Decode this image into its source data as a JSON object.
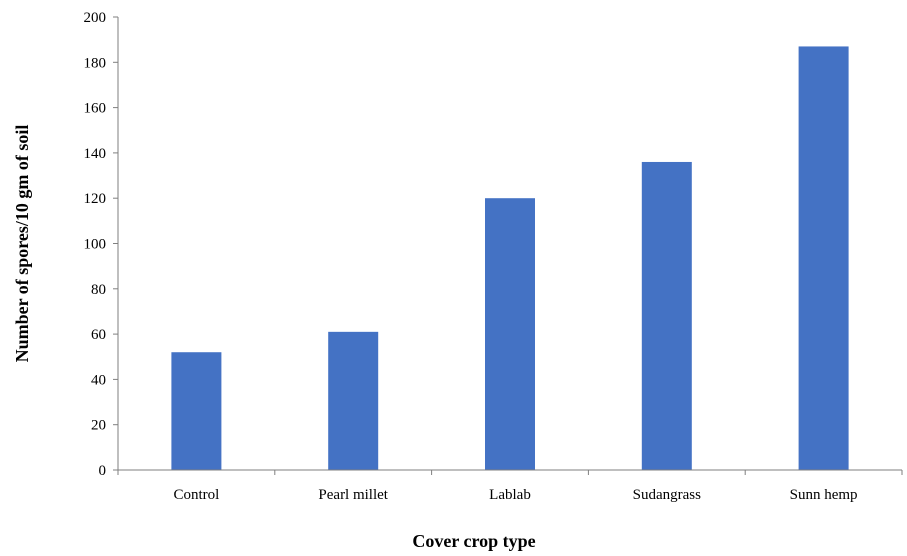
{
  "chart_data": {
    "type": "bar",
    "categories": [
      "Control",
      "Pearl millet",
      "Lablab",
      "Sudangrass",
      "Sunn hemp"
    ],
    "values": [
      52,
      61,
      120,
      136,
      187
    ],
    "xlabel": "Cover crop type",
    "ylabel": "Number of spores/10 gm of soil",
    "ylim": [
      0,
      200
    ],
    "yticks": [
      0,
      20,
      40,
      60,
      80,
      100,
      120,
      140,
      160,
      180,
      200
    ],
    "grid": false,
    "legend": "none",
    "bar_color": "#4472c4"
  }
}
